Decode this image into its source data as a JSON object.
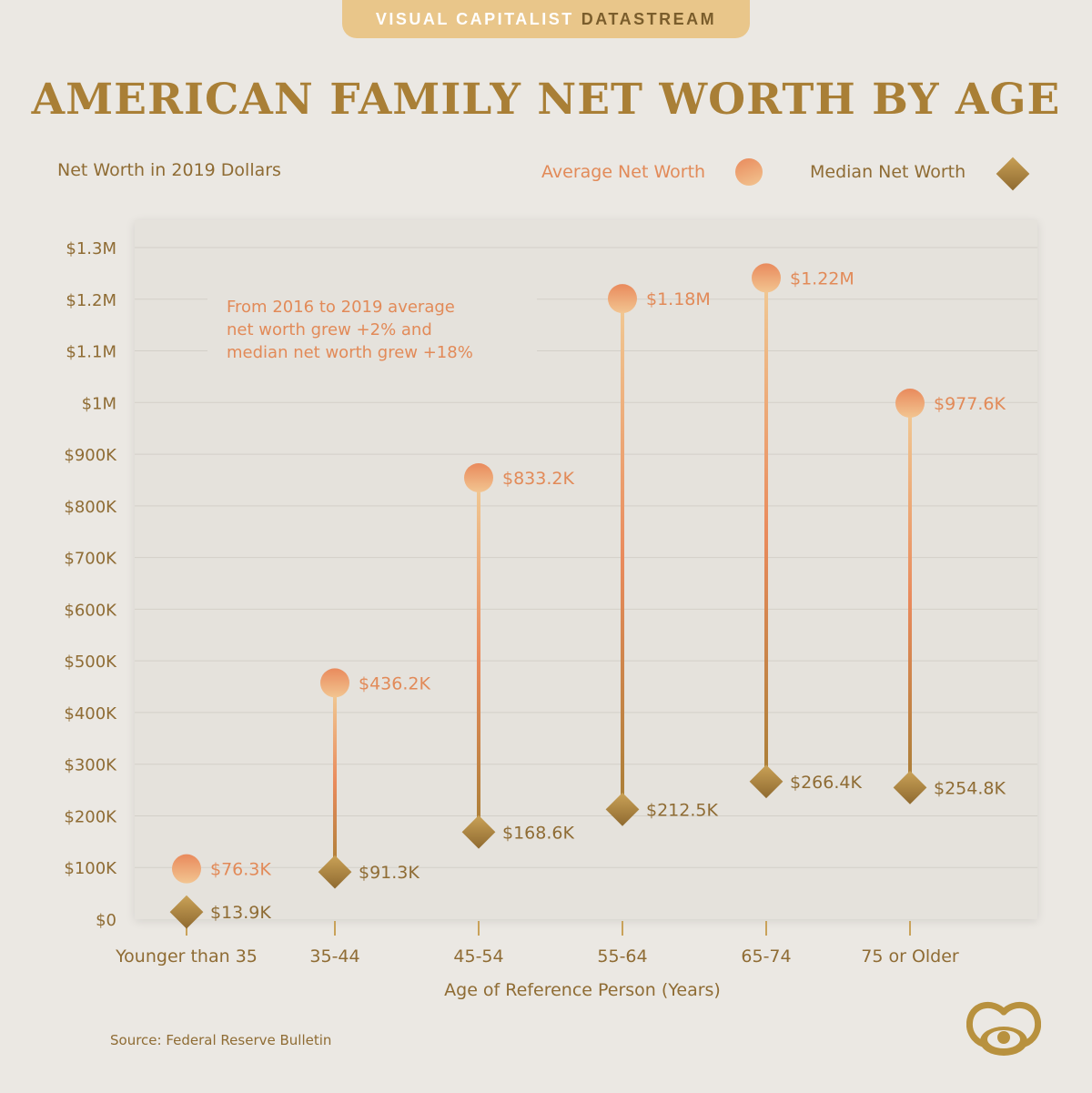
{
  "banner": {
    "part1": "VISUAL CAPITALIST",
    "part2": "DATASTREAM"
  },
  "title": "AMERICAN FAMILY NET WORTH BY AGE",
  "subtitle": "Net Worth in 2019 Dollars",
  "legend": {
    "average": "Average Net Worth",
    "median": "Median Net Worth"
  },
  "annotation": [
    "From 2016 to 2019 average",
    "net worth grew +2% and",
    "median net worth grew +18%"
  ],
  "source": "Source: Federal Reserve Bulletin",
  "colors": {
    "average": "#e98a5c",
    "median": "#a97f36",
    "title": "#a97f36",
    "tick_text": "#8f6c34",
    "panel": "#e5e2dc"
  },
  "chart_data": {
    "type": "scatter",
    "title": "AMERICAN FAMILY NET WORTH BY AGE",
    "xlabel": "Age of Reference Person (Years)",
    "ylabel": "Net Worth in 2019 Dollars",
    "ylim": [
      0,
      1300000
    ],
    "grid": true,
    "legend_position": "top-right",
    "y_ticks": [
      0,
      100000,
      200000,
      300000,
      400000,
      500000,
      600000,
      700000,
      800000,
      900000,
      1000000,
      1100000,
      1200000,
      1300000
    ],
    "y_tick_labels": [
      "$0",
      "$100K",
      "$200K",
      "$300K",
      "$400K",
      "$500K",
      "$600K",
      "$700K",
      "$800K",
      "$900K",
      "$1M",
      "$1.1M",
      "$1.2M",
      "$1.3M"
    ],
    "categories": [
      "Younger than 35",
      "35-44",
      "45-54",
      "55-64",
      "65-74",
      "75 or Older"
    ],
    "series": [
      {
        "name": "Average Net Worth",
        "values": [
          76300,
          436200,
          833200,
          1180000,
          1220000,
          977600
        ],
        "labels": [
          "$76.3K",
          "$436.2K",
          "$833.2K",
          "$1.18M",
          "$1.22M",
          "$977.6K"
        ]
      },
      {
        "name": "Median Net Worth",
        "values": [
          13900,
          91300,
          168600,
          212500,
          266400,
          254800
        ],
        "labels": [
          "$13.9K",
          "$91.3K",
          "$168.6K",
          "$212.5K",
          "$266.4K",
          "$254.8K"
        ]
      }
    ]
  }
}
